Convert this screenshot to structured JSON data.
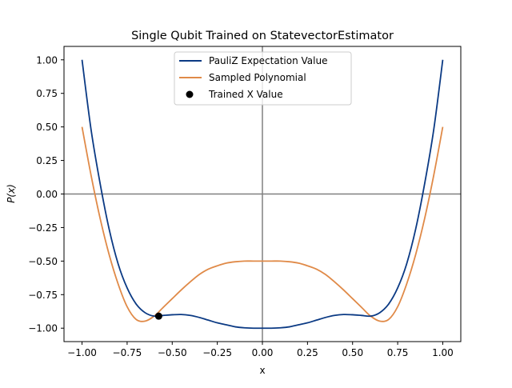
{
  "chart_data": {
    "type": "line",
    "title": "Single Qubit Trained on StatevectorEstimator",
    "xlabel": "x",
    "ylabel": "P(x)",
    "xlim": [
      -1.1,
      1.1
    ],
    "ylim": [
      -1.1,
      1.1
    ],
    "xticks": [
      -1.0,
      -0.75,
      -0.5,
      -0.25,
      0.0,
      0.25,
      0.5,
      0.75,
      1.0
    ],
    "xtick_labels": [
      "−1.00",
      "−0.75",
      "−0.50",
      "−0.25",
      "0.00",
      "0.25",
      "0.50",
      "0.75",
      "1.00"
    ],
    "yticks": [
      -1.0,
      -0.75,
      -0.5,
      -0.25,
      0.0,
      0.25,
      0.5,
      0.75,
      1.0
    ],
    "ytick_labels": [
      "−1.00",
      "−0.75",
      "−0.50",
      "−0.25",
      "0.00",
      "0.25",
      "0.50",
      "0.75",
      "1.00"
    ],
    "reference_lines": {
      "x": 0,
      "y": 0,
      "color": "#808080"
    },
    "grid": false,
    "legend_position": "top-center",
    "series": [
      {
        "name": "PauliZ Expectation Value",
        "color": "#0b3a84",
        "x": [
          -1.0,
          -0.95,
          -0.9,
          -0.85,
          -0.8,
          -0.75,
          -0.7,
          -0.65,
          -0.6,
          -0.55,
          -0.5,
          -0.45,
          -0.4,
          -0.35,
          -0.3,
          -0.25,
          -0.2,
          -0.15,
          -0.1,
          -0.05,
          0.0,
          0.05,
          0.1,
          0.15,
          0.2,
          0.25,
          0.3,
          0.35,
          0.4,
          0.45,
          0.5,
          0.55,
          0.6,
          0.65,
          0.7,
          0.75,
          0.8,
          0.85,
          0.9,
          0.95,
          1.0
        ],
        "y": [
          1.0,
          0.48,
          0.08,
          -0.26,
          -0.52,
          -0.7,
          -0.82,
          -0.885,
          -0.91,
          -0.905,
          -0.9,
          -0.898,
          -0.905,
          -0.92,
          -0.94,
          -0.96,
          -0.975,
          -0.99,
          -0.997,
          -1.0,
          -1.0,
          -1.0,
          -0.997,
          -0.99,
          -0.975,
          -0.96,
          -0.94,
          -0.92,
          -0.905,
          -0.898,
          -0.9,
          -0.905,
          -0.91,
          -0.885,
          -0.82,
          -0.7,
          -0.52,
          -0.26,
          0.08,
          0.48,
          1.0
        ]
      },
      {
        "name": "Sampled Polynomial",
        "color": "#e08a48",
        "x": [
          -1.0,
          -0.95,
          -0.9,
          -0.85,
          -0.8,
          -0.75,
          -0.7,
          -0.65,
          -0.6,
          -0.55,
          -0.5,
          -0.45,
          -0.4,
          -0.35,
          -0.3,
          -0.25,
          -0.2,
          -0.15,
          -0.1,
          -0.05,
          0.0,
          0.05,
          0.1,
          0.15,
          0.2,
          0.25,
          0.3,
          0.35,
          0.4,
          0.45,
          0.5,
          0.55,
          0.6,
          0.65,
          0.7,
          0.75,
          0.8,
          0.85,
          0.9,
          0.95,
          1.0
        ],
        "y": [
          0.5,
          0.14,
          -0.18,
          -0.45,
          -0.67,
          -0.84,
          -0.935,
          -0.947,
          -0.91,
          -0.845,
          -0.78,
          -0.715,
          -0.655,
          -0.6,
          -0.56,
          -0.535,
          -0.515,
          -0.505,
          -0.5,
          -0.5,
          -0.5,
          -0.5,
          -0.5,
          -0.505,
          -0.515,
          -0.535,
          -0.56,
          -0.6,
          -0.655,
          -0.715,
          -0.78,
          -0.845,
          -0.91,
          -0.947,
          -0.935,
          -0.84,
          -0.67,
          -0.45,
          -0.18,
          0.14,
          0.5
        ]
      }
    ],
    "points": [
      {
        "name": "Trained X Value",
        "x": -0.575,
        "y": -0.91,
        "color": "#000000"
      }
    ]
  }
}
